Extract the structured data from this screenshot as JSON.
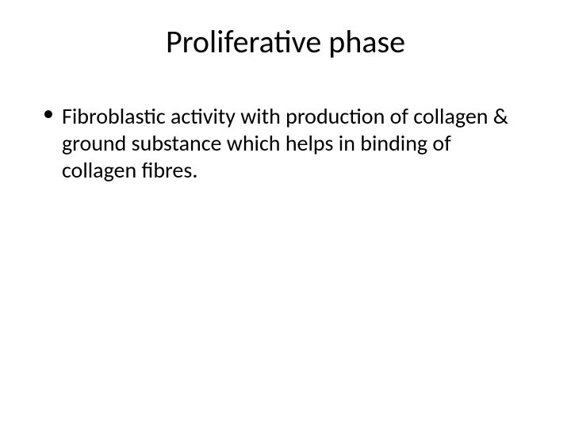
{
  "slide": {
    "title": "Proliferative phase",
    "bullets": [
      {
        "text": "Fibroblastic activity with production of collagen & ground substance which helps in binding of collagen fibres."
      }
    ],
    "title_fontsize": 40,
    "body_fontsize": 28,
    "text_color": "#000000",
    "background_color": "#ffffff",
    "bullet_marker": "•"
  }
}
